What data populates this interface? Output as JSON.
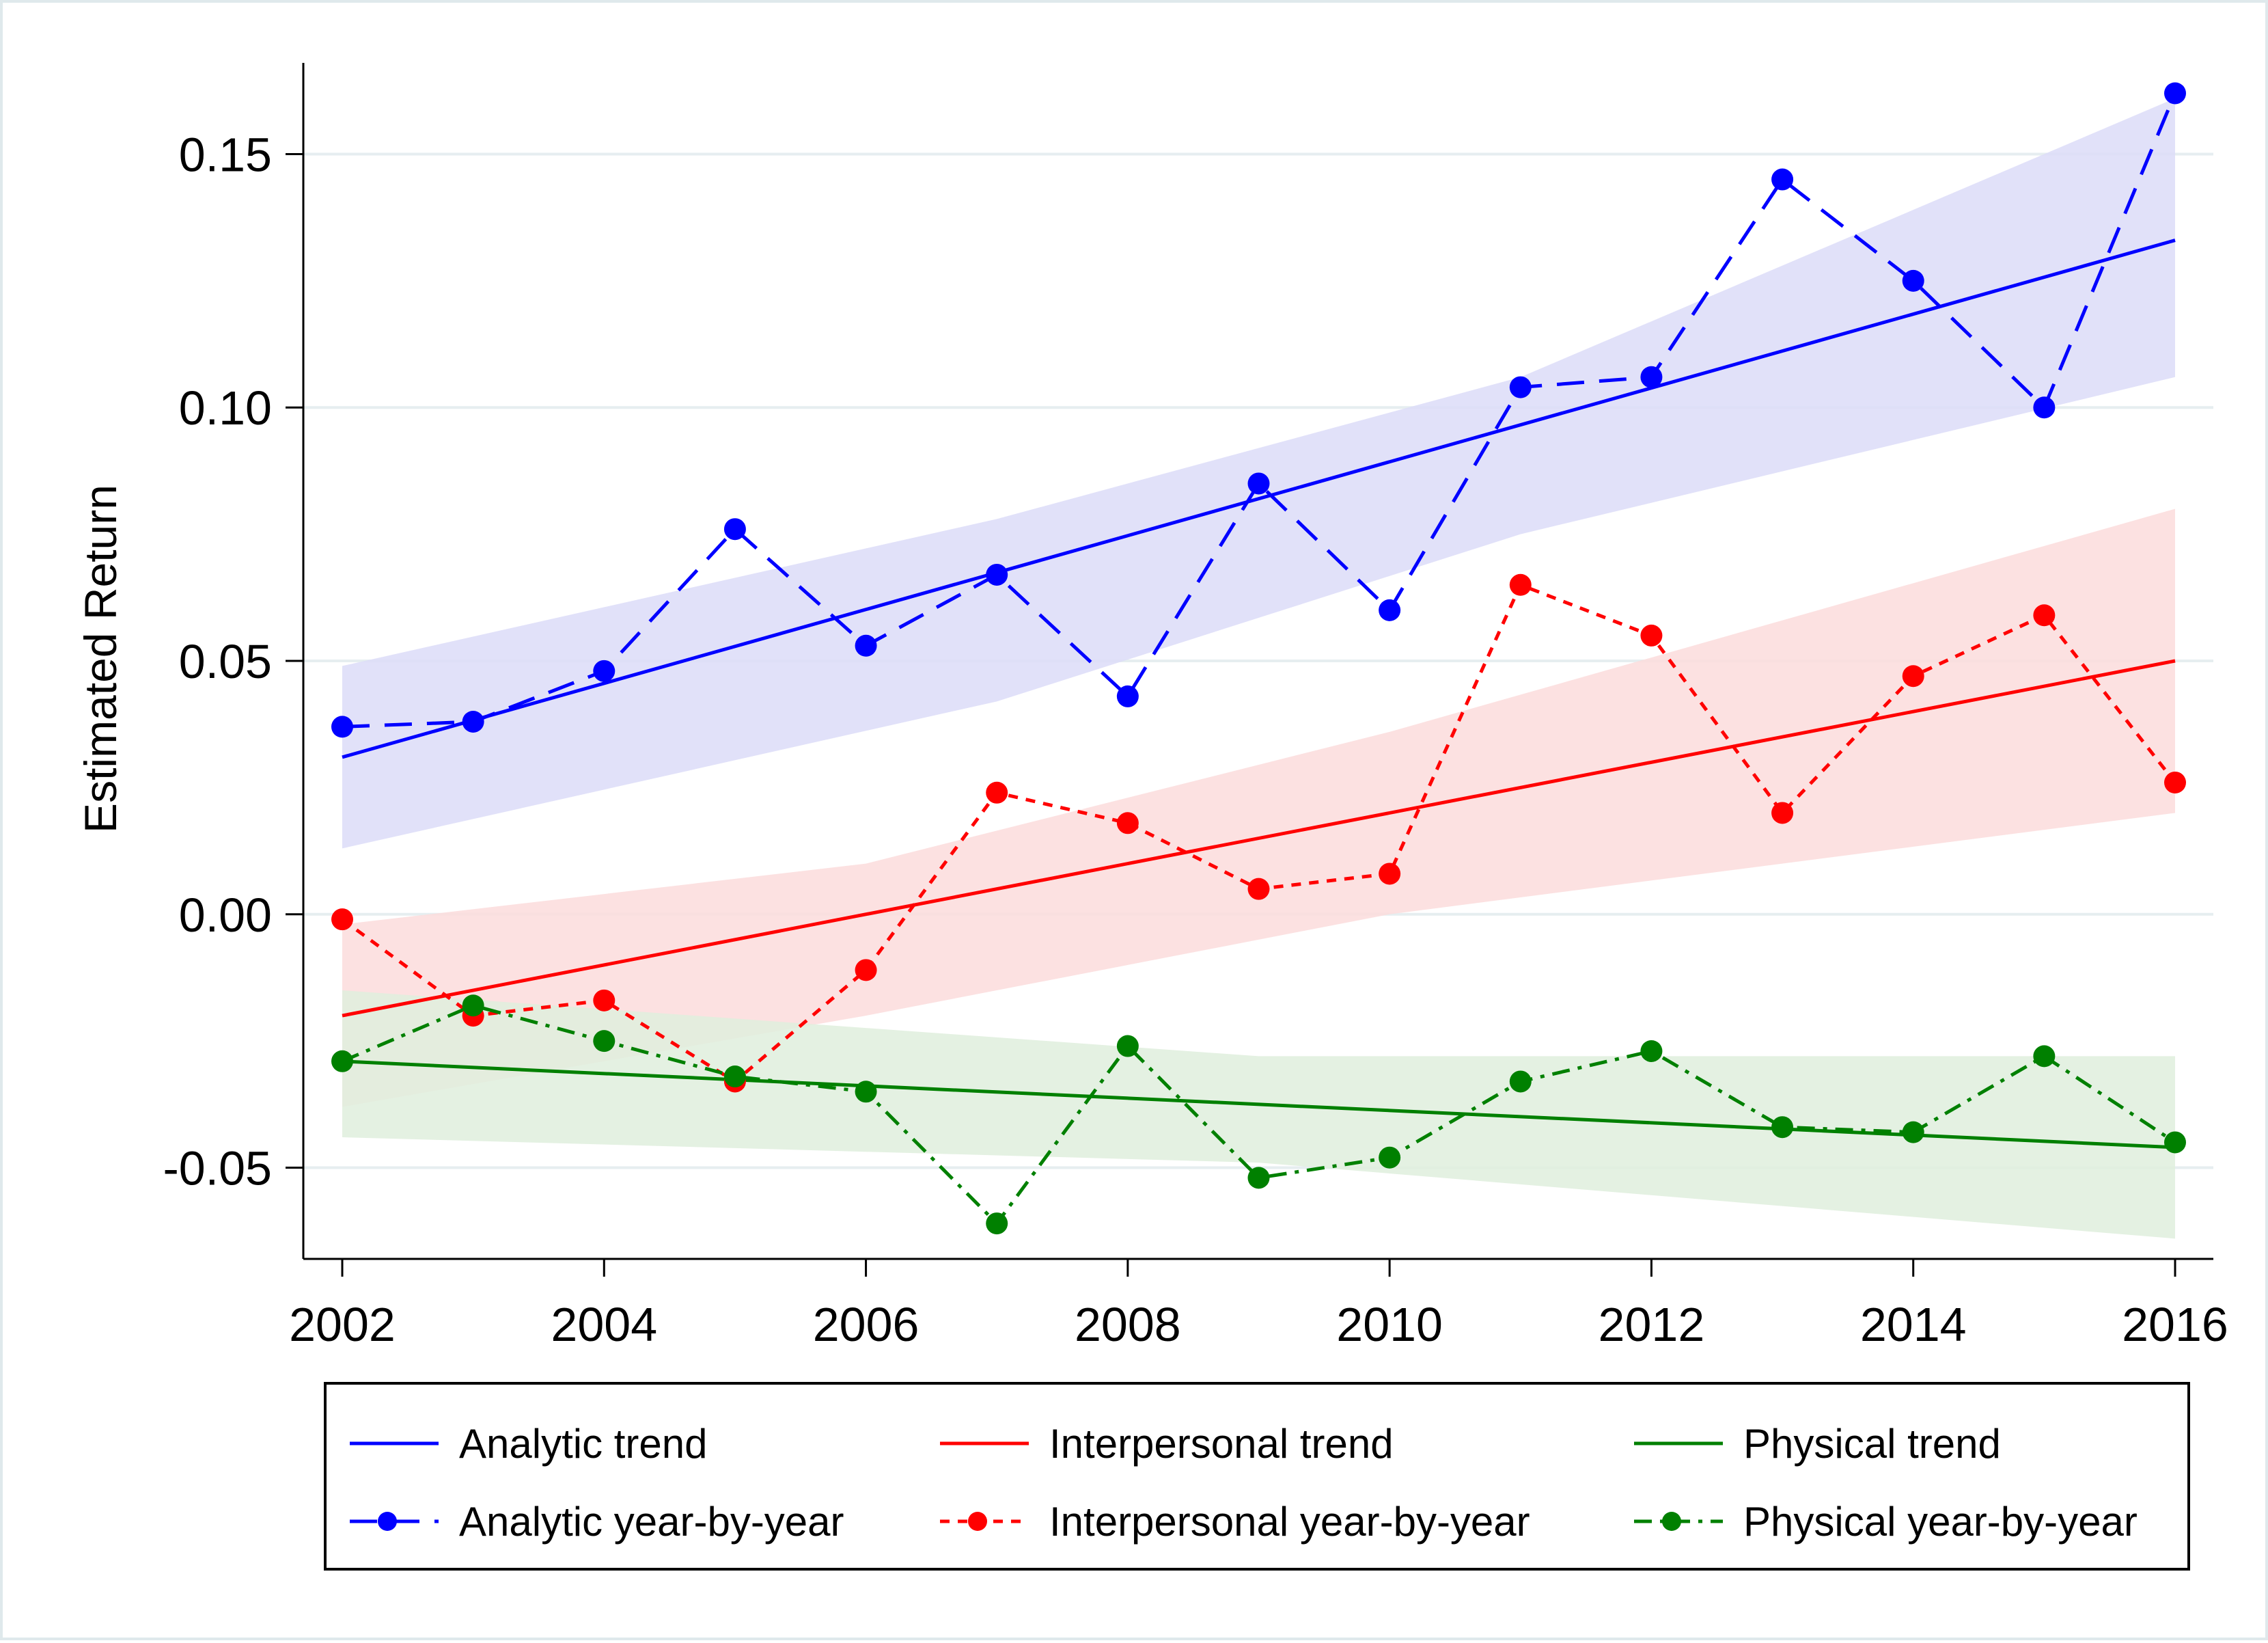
{
  "chart_data": {
    "type": "line",
    "title": "",
    "xlabel": "",
    "ylabel": "Estimated Return",
    "xlim": [
      2002,
      2016
    ],
    "ylim": [
      -0.068,
      0.168
    ],
    "x_ticks": [
      "2002",
      "2004",
      "2006",
      "2008",
      "2010",
      "2012",
      "2014",
      "2016"
    ],
    "y_ticks": [
      "-0.05",
      "0.00",
      "0.05",
      "0.10",
      "0.15"
    ],
    "grid": true,
    "legend_position": "bottom",
    "x": [
      2002,
      2003,
      2004,
      2005,
      2006,
      2007,
      2008,
      2009,
      2010,
      2011,
      2012,
      2013,
      2014,
      2015,
      2016
    ],
    "series": [
      {
        "name": "Analytic trend",
        "kind": "trend",
        "color": "#0000ff",
        "x": [
          2002,
          2016
        ],
        "values": [
          0.031,
          0.133
        ],
        "ci_lower": [
          0.013,
          0.042,
          0.075,
          0.106
        ],
        "ci_upper": [
          0.049,
          0.078,
          0.106,
          0.161
        ],
        "ci_x": [
          2002,
          2007,
          2011,
          2016
        ],
        "band_color": "#dcdcf8"
      },
      {
        "name": "Analytic year-by-year",
        "kind": "yearly",
        "color": "#0000ff",
        "dash": "40,22",
        "values": [
          0.037,
          0.038,
          0.048,
          0.076,
          0.053,
          0.067,
          0.043,
          0.085,
          0.06,
          0.104,
          0.106,
          0.145,
          0.125,
          0.1,
          0.162
        ]
      },
      {
        "name": "Interpersonal trend",
        "kind": "trend",
        "color": "#ff0000",
        "x": [
          2002,
          2016
        ],
        "values": [
          -0.02,
          0.05
        ],
        "ci_lower": [
          -0.038,
          -0.02,
          0.0,
          0.02
        ],
        "ci_upper": [
          -0.002,
          0.01,
          0.036,
          0.08
        ],
        "ci_x": [
          2002,
          2006,
          2010,
          2016
        ],
        "band_color": "#fbdcdc"
      },
      {
        "name": "Interpersonal year-by-year",
        "kind": "yearly",
        "color": "#ff0000",
        "dash": "14,12",
        "values": [
          -0.001,
          -0.02,
          -0.017,
          -0.033,
          -0.011,
          0.024,
          0.018,
          0.005,
          0.008,
          0.065,
          0.055,
          0.02,
          0.047,
          0.059,
          0.026
        ]
      },
      {
        "name": "Physical trend",
        "kind": "trend",
        "color": "#008000",
        "x": [
          2002,
          2016
        ],
        "values": [
          -0.029,
          -0.046
        ],
        "ci_lower": [
          -0.044,
          -0.049,
          -0.064
        ],
        "ci_upper": [
          -0.015,
          -0.028,
          -0.028
        ],
        "ci_x": [
          2002,
          2009,
          2016
        ],
        "band_color": "#dfeedd"
      },
      {
        "name": "Physical year-by-year",
        "kind": "yearly",
        "color": "#008000",
        "dash": "26,12,6,12",
        "values": [
          -0.029,
          -0.018,
          -0.025,
          -0.032,
          -0.035,
          -0.061,
          -0.026,
          -0.052,
          -0.048,
          -0.033,
          -0.027,
          -0.042,
          -0.043,
          -0.028,
          -0.045
        ]
      }
    ]
  },
  "legend": {
    "items": [
      {
        "label": "Analytic trend",
        "color": "#0000ff",
        "style": "trend"
      },
      {
        "label": "Interpersonal trend",
        "color": "#ff0000",
        "style": "trend"
      },
      {
        "label": "Physical trend",
        "color": "#008000",
        "style": "trend"
      },
      {
        "label": "Analytic year-by-year",
        "color": "#0000ff",
        "style": "yearly",
        "dash": "40,22"
      },
      {
        "label": "Interpersonal year-by-year",
        "color": "#ff0000",
        "style": "yearly",
        "dash": "14,12"
      },
      {
        "label": "Physical year-by-year",
        "color": "#008000",
        "style": "yearly",
        "dash": "26,12,6,12"
      }
    ]
  }
}
